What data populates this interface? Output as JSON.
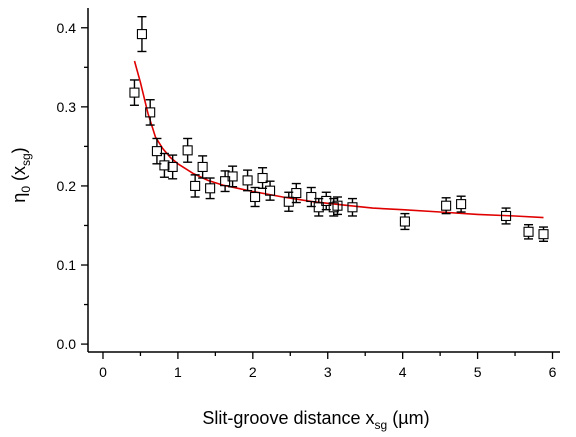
{
  "chart_data": {
    "type": "scatter",
    "title": "",
    "xlabel_main": "Slit-groove distance x",
    "xlabel_sub": "sg",
    "xlabel_unit": " (µm)",
    "ylabel_main": "η",
    "ylabel_sub0": "0",
    "ylabel_open": " (x",
    "ylabel_sub": "sg",
    "ylabel_close": ")",
    "xlim": [
      -0.2,
      6.1
    ],
    "ylim": [
      -0.01,
      0.425
    ],
    "x_ticks": [
      "0",
      "1",
      "2",
      "3",
      "4",
      "5",
      "6"
    ],
    "y_ticks": [
      "0.0",
      "0.1",
      "0.2",
      "0.3",
      "0.4"
    ],
    "grid": false,
    "legend": "none",
    "colors": {
      "data": "#000000",
      "fit": "#e00000"
    },
    "series": [
      {
        "marker": "open-square",
        "points": [
          {
            "x": 0.42,
            "y": 0.318,
            "err": 0.016
          },
          {
            "x": 0.52,
            "y": 0.392,
            "err": 0.022
          },
          {
            "x": 0.63,
            "y": 0.293,
            "err": 0.016
          },
          {
            "x": 0.72,
            "y": 0.244,
            "err": 0.016
          },
          {
            "x": 0.82,
            "y": 0.226,
            "err": 0.015
          },
          {
            "x": 0.93,
            "y": 0.224,
            "err": 0.015
          },
          {
            "x": 1.13,
            "y": 0.245,
            "err": 0.015
          },
          {
            "x": 1.23,
            "y": 0.2,
            "err": 0.014
          },
          {
            "x": 1.33,
            "y": 0.224,
            "err": 0.014
          },
          {
            "x": 1.43,
            "y": 0.197,
            "err": 0.013
          },
          {
            "x": 1.63,
            "y": 0.206,
            "err": 0.013
          },
          {
            "x": 1.73,
            "y": 0.212,
            "err": 0.013
          },
          {
            "x": 1.93,
            "y": 0.207,
            "err": 0.013
          },
          {
            "x": 2.03,
            "y": 0.186,
            "err": 0.012
          },
          {
            "x": 2.13,
            "y": 0.21,
            "err": 0.013
          },
          {
            "x": 2.23,
            "y": 0.194,
            "err": 0.012
          },
          {
            "x": 2.48,
            "y": 0.18,
            "err": 0.012
          },
          {
            "x": 2.58,
            "y": 0.191,
            "err": 0.012
          },
          {
            "x": 2.78,
            "y": 0.186,
            "err": 0.012
          },
          {
            "x": 2.88,
            "y": 0.173,
            "err": 0.011
          },
          {
            "x": 2.98,
            "y": 0.181,
            "err": 0.011
          },
          {
            "x": 3.08,
            "y": 0.173,
            "err": 0.011
          },
          {
            "x": 3.13,
            "y": 0.175,
            "err": 0.011
          },
          {
            "x": 3.33,
            "y": 0.173,
            "err": 0.011
          },
          {
            "x": 4.03,
            "y": 0.155,
            "err": 0.01
          },
          {
            "x": 4.58,
            "y": 0.175,
            "err": 0.01
          },
          {
            "x": 4.78,
            "y": 0.177,
            "err": 0.01
          },
          {
            "x": 5.38,
            "y": 0.162,
            "err": 0.01
          },
          {
            "x": 5.68,
            "y": 0.142,
            "err": 0.009
          },
          {
            "x": 5.88,
            "y": 0.139,
            "err": 0.009
          }
        ]
      },
      {
        "type": "line",
        "x": [
          0.42,
          0.5,
          0.6,
          0.7,
          0.8,
          0.9,
          1.0,
          1.2,
          1.4,
          1.6,
          1.8,
          2.0,
          2.4,
          2.8,
          3.2,
          3.6,
          4.0,
          4.5,
          5.0,
          5.5,
          5.88
        ],
        "y": [
          0.358,
          0.331,
          0.292,
          0.262,
          0.247,
          0.236,
          0.228,
          0.216,
          0.207,
          0.201,
          0.197,
          0.193,
          0.186,
          0.18,
          0.176,
          0.172,
          0.17,
          0.167,
          0.164,
          0.162,
          0.16
        ]
      }
    ]
  }
}
